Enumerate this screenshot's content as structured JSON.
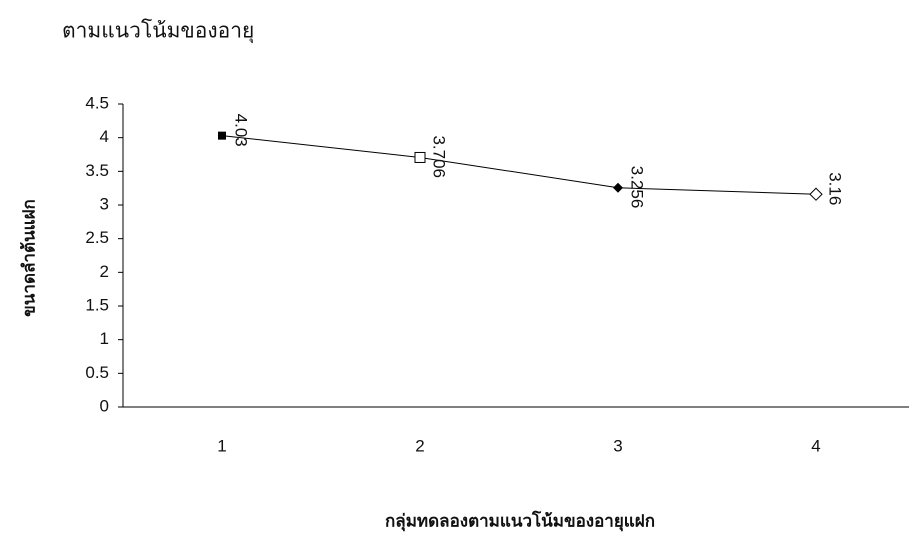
{
  "chart_data": {
    "type": "line",
    "title": "ตามแนวโน้มของอายุ",
    "x_label": "กลุ่มทดลองตามแนวโน้มของอายุแฝก",
    "y_label": "ขนาดลำต้นแฝก",
    "categories": [
      "1",
      "2",
      "3",
      "4"
    ],
    "values": [
      4.03,
      3.706,
      3.256,
      3.16
    ],
    "color": "#000000",
    "ylim": [
      0,
      4.5
    ],
    "yticks": [
      0,
      0.5,
      1,
      1.5,
      2,
      2.5,
      3,
      3.5,
      4,
      4.5
    ],
    "grid": false
  }
}
